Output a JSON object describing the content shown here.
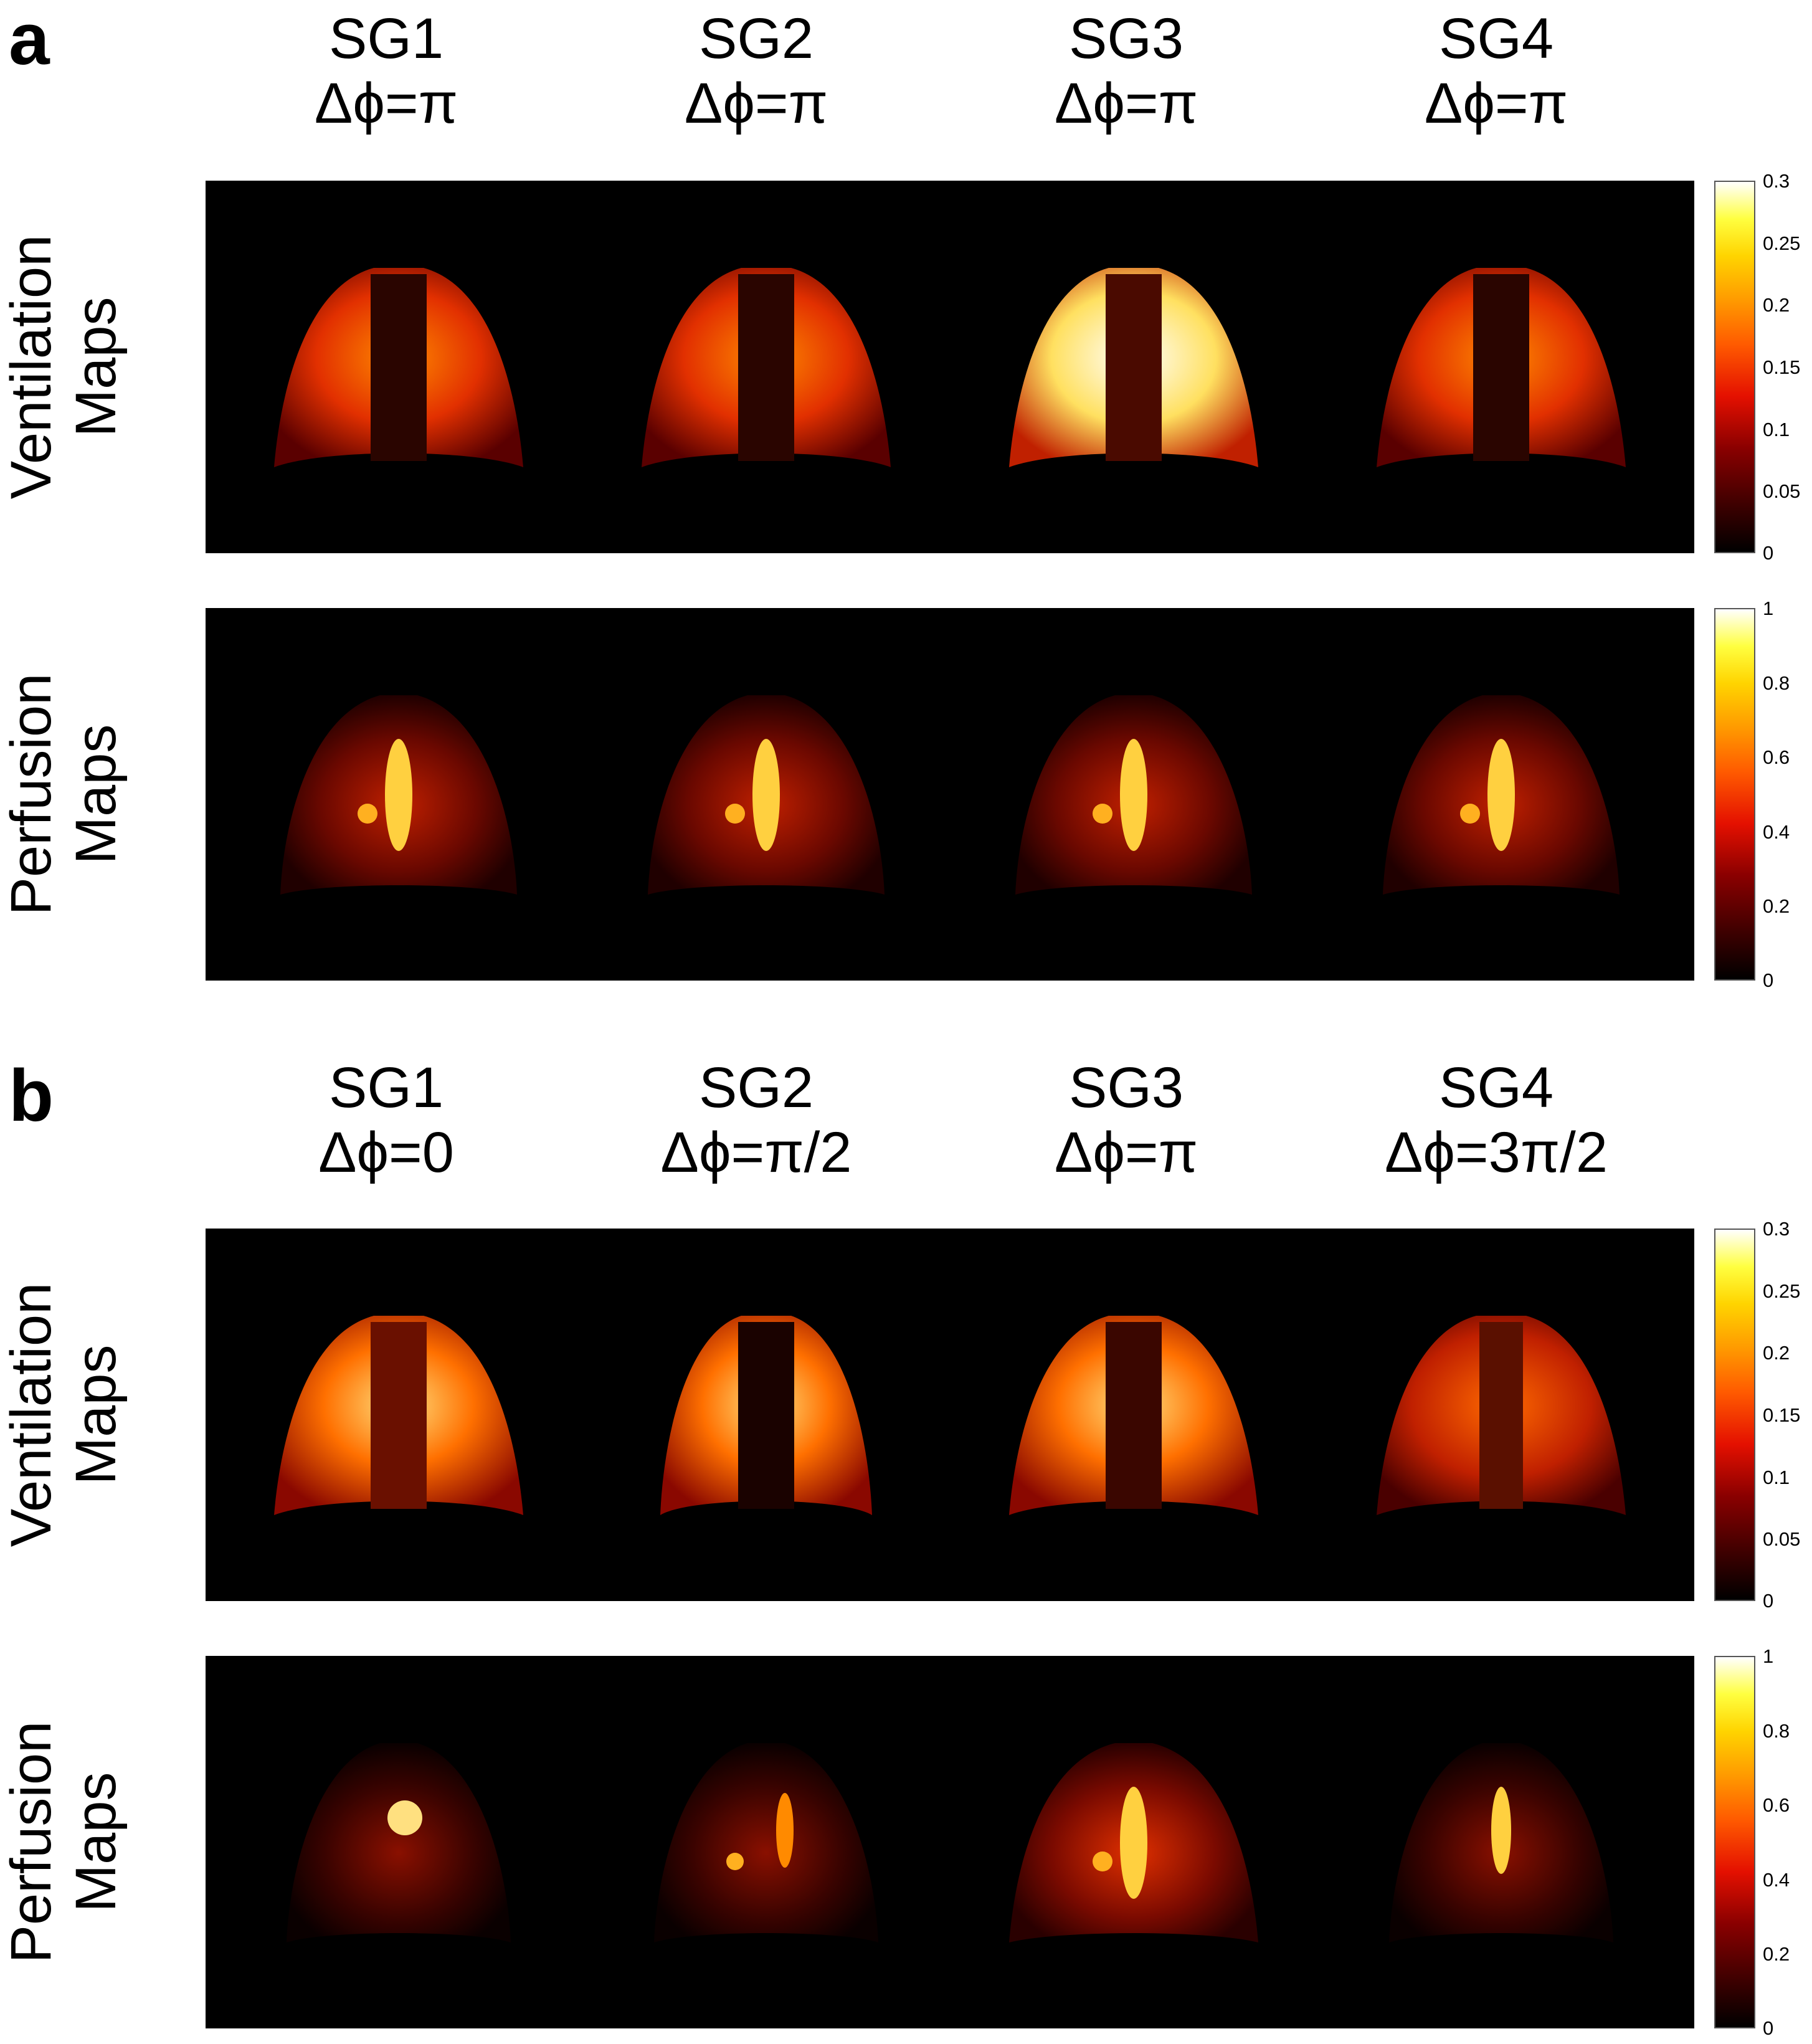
{
  "panels": [
    {
      "letter": "a",
      "columns": [
        {
          "sg": "SG1",
          "phase": "Δϕ=π"
        },
        {
          "sg": "SG2",
          "phase": "Δϕ=π"
        },
        {
          "sg": "SG3",
          "phase": "Δϕ=π"
        },
        {
          "sg": "SG4",
          "phase": "Δϕ=π"
        }
      ],
      "rows": [
        {
          "label_line1": "Ventilation",
          "label_line2": "Maps",
          "colorbar_ticks": [
            "0.3",
            "0.25",
            "0.2",
            "0.15",
            "0.1",
            "0.05",
            "0"
          ]
        },
        {
          "label_line1": "Perfusion",
          "label_line2": "Maps",
          "colorbar_ticks": [
            "1",
            "0.8",
            "0.6",
            "0.4",
            "0.2",
            "0"
          ]
        }
      ]
    },
    {
      "letter": "b",
      "columns": [
        {
          "sg": "SG1",
          "phase": "Δϕ=0"
        },
        {
          "sg": "SG2",
          "phase": "Δϕ=π/2"
        },
        {
          "sg": "SG3",
          "phase": "Δϕ=π"
        },
        {
          "sg": "SG4",
          "phase": "Δϕ=3π/2"
        }
      ],
      "rows": [
        {
          "label_line1": "Ventilation",
          "label_line2": "Maps",
          "colorbar_ticks": [
            "0.3",
            "0.25",
            "0.2",
            "0.15",
            "0.1",
            "0.05",
            "0"
          ]
        },
        {
          "label_line1": "Perfusion",
          "label_line2": "Maps",
          "colorbar_ticks": [
            "1",
            "0.8",
            "0.6",
            "0.4",
            "0.2",
            "0"
          ]
        }
      ]
    }
  ],
  "colormap": {
    "low": "#000000",
    "mid": "#e41000",
    "high": "#ffffff"
  }
}
